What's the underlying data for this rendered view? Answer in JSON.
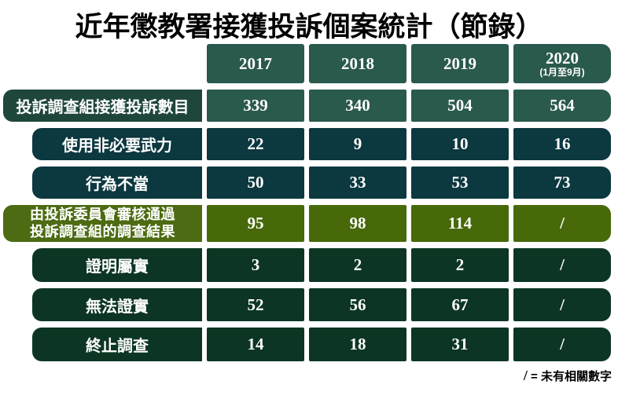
{
  "title": "近年懲教署接獲投訴個案統計（節錄）",
  "colors": {
    "teal": "#2A594E",
    "teal_label": "#1F463D",
    "petrol": "#0C3840",
    "olive": "#47690A",
    "olive_label": "#4C6B12",
    "forest": "#0C3623",
    "text_on_dark": "#FFFFFF",
    "page_background": "#FFFFFF"
  },
  "chart_data": {
    "type": "table",
    "title": "近年懲教署接獲投訴個案統計（節錄）",
    "categories": [
      "2017",
      "2018",
      "2019",
      "2020 (1月至9月)"
    ],
    "series": [
      {
        "name": "投訴調查組接獲投訴數目",
        "values": [
          339,
          340,
          504,
          564
        ]
      },
      {
        "name": "使用非必要武力",
        "values": [
          22,
          9,
          10,
          16
        ]
      },
      {
        "name": "行為不當",
        "values": [
          50,
          33,
          53,
          73
        ]
      },
      {
        "name": "由投訴委員會審核通過投訴調查組的調查結果",
        "values": [
          95,
          98,
          114,
          null
        ]
      },
      {
        "name": "證明屬實",
        "values": [
          3,
          2,
          2,
          null
        ]
      },
      {
        "name": "無法證實",
        "values": [
          52,
          56,
          67,
          null
        ]
      },
      {
        "name": "終止調查",
        "values": [
          14,
          18,
          31,
          null
        ]
      }
    ],
    "null_marker": "/",
    "footnote": "/ = 未有相關數字"
  },
  "table": {
    "columns": [
      {
        "year": "2017",
        "note": ""
      },
      {
        "year": "2018",
        "note": ""
      },
      {
        "year": "2019",
        "note": ""
      },
      {
        "year": "2020",
        "note": "(1月至9月)"
      }
    ],
    "rows": [
      {
        "band": "teal",
        "indent": false,
        "label_lines": [
          "投訴調查組接獲投訴數目"
        ],
        "values": [
          "339",
          "340",
          "504",
          "564"
        ]
      },
      {
        "band": "petrol",
        "indent": true,
        "label_lines": [
          "使用非必要武力"
        ],
        "values": [
          "22",
          "9",
          "10",
          "16"
        ]
      },
      {
        "band": "petrol",
        "indent": true,
        "label_lines": [
          "行為不當"
        ],
        "values": [
          "50",
          "33",
          "53",
          "73"
        ]
      },
      {
        "band": "olive",
        "indent": false,
        "label_lines": [
          "由投訴委員會審核通過",
          "投訴調查組的調查結果"
        ],
        "values": [
          "95",
          "98",
          "114",
          "/"
        ]
      },
      {
        "band": "forest",
        "indent": true,
        "label_lines": [
          "證明屬實"
        ],
        "values": [
          "3",
          "2",
          "2",
          "/"
        ]
      },
      {
        "band": "forest",
        "indent": true,
        "label_lines": [
          "無法證實"
        ],
        "values": [
          "52",
          "56",
          "67",
          "/"
        ]
      },
      {
        "band": "forest",
        "indent": true,
        "label_lines": [
          "終止調查"
        ],
        "values": [
          "14",
          "18",
          "31",
          "/"
        ]
      }
    ]
  },
  "legend": {
    "slash": "/",
    "separator": " = ",
    "label": "未有相關數字"
  }
}
